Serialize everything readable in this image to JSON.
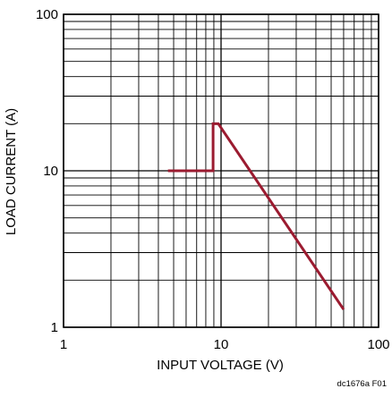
{
  "chart_data": {
    "type": "line",
    "xlabel": "INPUT VOLTAGE (V)",
    "ylabel": "LOAD CURRENT (A)",
    "x_scale": "log",
    "y_scale": "log",
    "xlim": [
      1,
      100
    ],
    "ylim": [
      1,
      100
    ],
    "x_ticks": [
      1,
      10,
      100
    ],
    "y_ticks": [
      1,
      10,
      100
    ],
    "x_tick_labels": [
      "1",
      "10",
      "100"
    ],
    "y_tick_labels": [
      "1",
      "10",
      "100"
    ],
    "grid": true,
    "series": [
      {
        "color": "#9b1b30",
        "x": [
          4.6,
          8.9,
          8.9,
          9.6,
          60
        ],
        "y": [
          10,
          10,
          20,
          20,
          1.3
        ]
      }
    ],
    "figure_id": "dc1676a F01"
  }
}
